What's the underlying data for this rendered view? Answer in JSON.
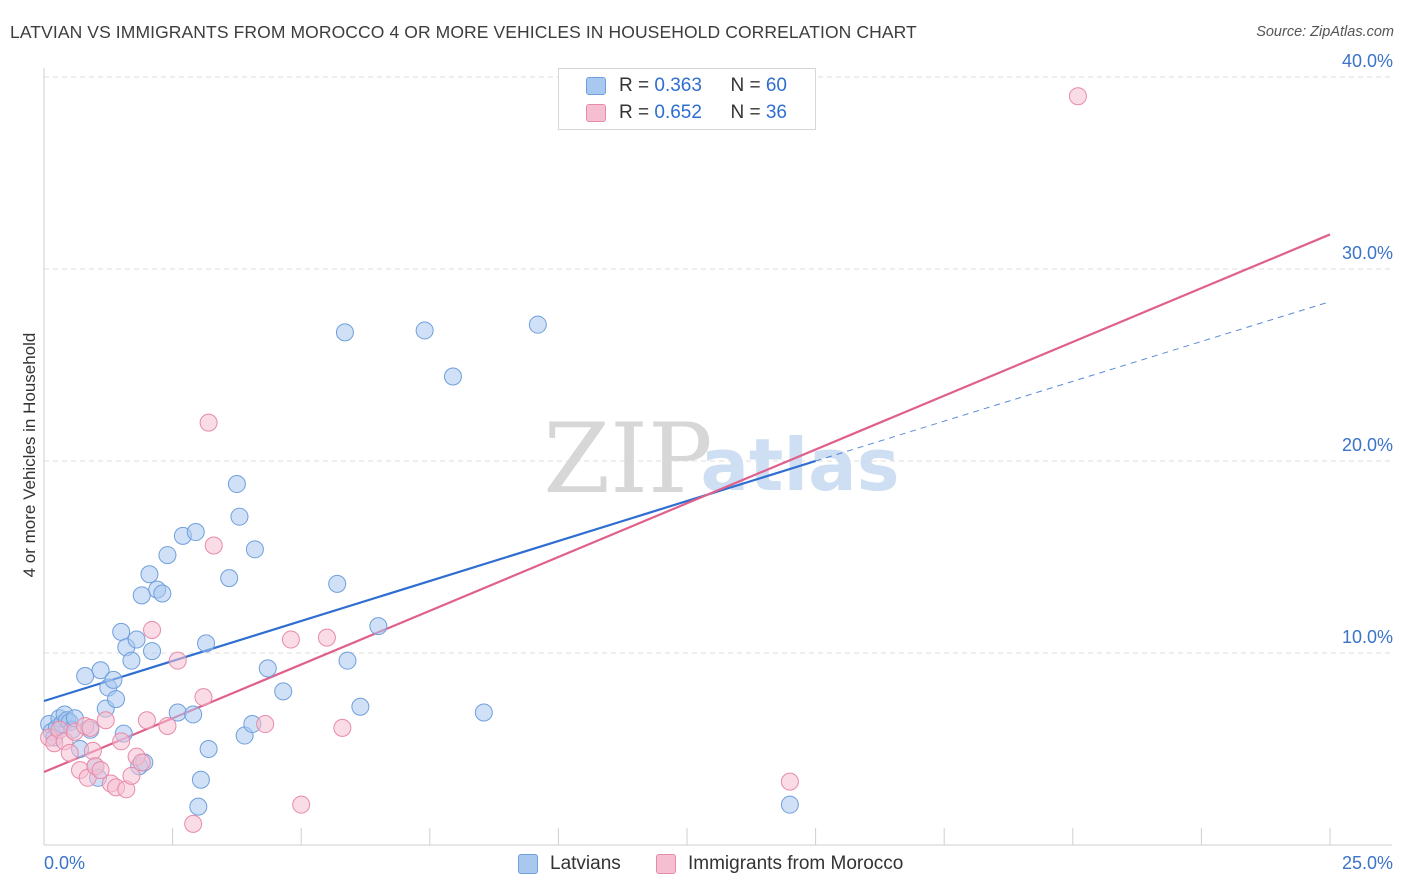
{
  "title": "LATVIAN VS IMMIGRANTS FROM MOROCCO 4 OR MORE VEHICLES IN HOUSEHOLD CORRELATION CHART",
  "source": "Source: ZipAtlas.com",
  "watermark": {
    "zip": "ZIP",
    "atlas": "atlas"
  },
  "colors": {
    "blue_fill": "#a9c8f0",
    "blue_stroke": "#6f9fdc",
    "blue_line": "#2f6ed1",
    "pink_fill": "#f6bfd1",
    "pink_stroke": "#e88aa9",
    "pink_line": "#e0608c",
    "axis_text": "#3a73c9",
    "grid": "#dcdcdc"
  },
  "stats": [
    {
      "r_label": "R = ",
      "r_value": "0.363",
      "n_label": "N = ",
      "n_value": "60"
    },
    {
      "r_label": "R = ",
      "r_value": "0.652",
      "n_label": "N = ",
      "n_value": "36"
    }
  ],
  "legend": {
    "series1": "Latvians",
    "series2": "Immigrants from Morocco"
  },
  "chart_data": {
    "type": "scatter",
    "title": "LATVIAN VS IMMIGRANTS FROM MOROCCO 4 OR MORE VEHICLES IN HOUSEHOLD CORRELATION CHART",
    "xlabel": "",
    "ylabel": "4 or more Vehicles in Household",
    "xlim": [
      0,
      25
    ],
    "ylim": [
      0,
      40
    ],
    "x_tick_labels": [
      "0.0%",
      "25.0%"
    ],
    "y_ticks": [
      10,
      20,
      30,
      40
    ],
    "y_tick_labels": [
      "10.0%",
      "20.0%",
      "30.0%",
      "40.0%"
    ],
    "legend_position": "bottom",
    "series": [
      {
        "name": "Latvians",
        "color": "#a9c8f0",
        "points": [
          [
            0.1,
            6.3
          ],
          [
            0.15,
            5.9
          ],
          [
            0.2,
            5.6
          ],
          [
            0.25,
            6.1
          ],
          [
            0.3,
            6.6
          ],
          [
            0.35,
            6.3
          ],
          [
            0.4,
            6.8
          ],
          [
            0.45,
            6.5
          ],
          [
            0.5,
            6.4
          ],
          [
            0.55,
            6.0
          ],
          [
            0.6,
            6.6
          ],
          [
            0.7,
            5.0
          ],
          [
            0.8,
            8.8
          ],
          [
            0.9,
            6.0
          ],
          [
            1.0,
            4.1
          ],
          [
            1.05,
            3.5
          ],
          [
            1.1,
            9.1
          ],
          [
            1.2,
            7.1
          ],
          [
            1.25,
            8.2
          ],
          [
            1.35,
            8.6
          ],
          [
            1.4,
            7.6
          ],
          [
            1.5,
            11.1
          ],
          [
            1.55,
            5.8
          ],
          [
            1.6,
            10.3
          ],
          [
            1.7,
            9.6
          ],
          [
            1.8,
            10.7
          ],
          [
            1.85,
            4.1
          ],
          [
            1.9,
            13.0
          ],
          [
            1.95,
            4.3
          ],
          [
            2.05,
            14.1
          ],
          [
            2.1,
            10.1
          ],
          [
            2.2,
            13.3
          ],
          [
            2.3,
            13.1
          ],
          [
            2.4,
            15.1
          ],
          [
            2.6,
            6.9
          ],
          [
            2.7,
            16.1
          ],
          [
            2.9,
            6.8
          ],
          [
            2.95,
            16.3
          ],
          [
            3.0,
            2.0
          ],
          [
            3.05,
            3.4
          ],
          [
            3.15,
            10.5
          ],
          [
            3.2,
            5.0
          ],
          [
            3.6,
            13.9
          ],
          [
            3.75,
            18.8
          ],
          [
            3.8,
            17.1
          ],
          [
            3.9,
            5.7
          ],
          [
            4.05,
            6.3
          ],
          [
            4.1,
            15.4
          ],
          [
            4.35,
            9.2
          ],
          [
            4.65,
            8.0
          ],
          [
            5.7,
            13.6
          ],
          [
            5.85,
            26.7
          ],
          [
            5.9,
            9.6
          ],
          [
            6.15,
            7.2
          ],
          [
            6.5,
            11.4
          ],
          [
            7.4,
            26.8
          ],
          [
            7.95,
            24.4
          ],
          [
            8.55,
            6.9
          ],
          [
            9.6,
            27.1
          ],
          [
            14.5,
            2.1
          ]
        ]
      },
      {
        "name": "Immigrants from Morocco",
        "color": "#f6bfd1",
        "points": [
          [
            0.1,
            5.6
          ],
          [
            0.2,
            5.3
          ],
          [
            0.3,
            6.0
          ],
          [
            0.4,
            5.4
          ],
          [
            0.5,
            4.8
          ],
          [
            0.6,
            5.9
          ],
          [
            0.7,
            3.9
          ],
          [
            0.8,
            6.2
          ],
          [
            0.85,
            3.5
          ],
          [
            0.9,
            6.1
          ],
          [
            0.95,
            4.9
          ],
          [
            1.0,
            4.1
          ],
          [
            1.1,
            3.9
          ],
          [
            1.2,
            6.5
          ],
          [
            1.3,
            3.2
          ],
          [
            1.4,
            3.0
          ],
          [
            1.5,
            5.4
          ],
          [
            1.6,
            2.9
          ],
          [
            1.7,
            3.6
          ],
          [
            1.8,
            4.6
          ],
          [
            1.9,
            4.3
          ],
          [
            2.0,
            6.5
          ],
          [
            2.1,
            11.2
          ],
          [
            2.4,
            6.2
          ],
          [
            2.6,
            9.6
          ],
          [
            2.9,
            1.1
          ],
          [
            3.1,
            7.7
          ],
          [
            3.2,
            22.0
          ],
          [
            3.3,
            15.6
          ],
          [
            4.3,
            6.3
          ],
          [
            4.8,
            10.7
          ],
          [
            5.0,
            2.1
          ],
          [
            5.5,
            10.8
          ],
          [
            5.8,
            6.1
          ],
          [
            14.5,
            3.3
          ],
          [
            20.1,
            39.0
          ]
        ]
      }
    ],
    "trend_lines": [
      {
        "series": "Latvians",
        "x_start": 0,
        "y_start": 7.5,
        "x_end": 15.0,
        "y_end": 20.0,
        "dashed_extension_to_x": 25,
        "dashed_extension_y": 28.3
      },
      {
        "series": "Immigrants from Morocco",
        "x_start": 0,
        "y_start": 3.8,
        "x_end": 25,
        "y_end": 31.8
      }
    ]
  }
}
